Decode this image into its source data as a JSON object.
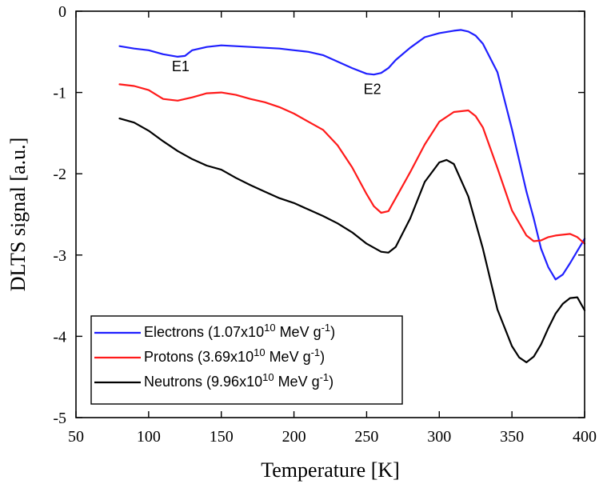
{
  "chart_data": {
    "type": "line",
    "xlabel": "Temperature [K]",
    "ylabel": "DLTS signal [a.u.]",
    "xlim": [
      50,
      400
    ],
    "ylim": [
      -5,
      0
    ],
    "x_ticks": [
      50,
      100,
      150,
      200,
      250,
      300,
      350,
      400
    ],
    "y_ticks": [
      0,
      -1,
      -2,
      -3,
      -4,
      -5
    ],
    "x_tick_labels": [
      "50",
      "100",
      "150",
      "200",
      "250",
      "300",
      "350",
      "400"
    ],
    "y_tick_labels": [
      "0",
      "-1",
      "-2",
      "-3",
      "-4",
      "-5"
    ],
    "grid": false,
    "legend_position": "bottom-left",
    "annotations": [
      {
        "text": "E1",
        "x": 122,
        "y": -0.74
      },
      {
        "text": "E2",
        "x": 254,
        "y": -1.02
      }
    ],
    "series": [
      {
        "legend": {
          "prefix": "Electrons (1.07x10",
          "exponent": "10",
          "middle": " MeV g",
          "unit_exponent": "-1",
          "suffix": ")"
        },
        "color": "#1f1fff",
        "x": [
          80,
          90,
          100,
          110,
          120,
          125,
          130,
          140,
          150,
          160,
          170,
          180,
          190,
          200,
          210,
          220,
          230,
          240,
          250,
          255,
          260,
          265,
          270,
          280,
          290,
          300,
          310,
          315,
          320,
          325,
          330,
          340,
          350,
          360,
          365,
          370,
          375,
          380,
          385,
          390,
          395,
          400
        ],
        "y": [
          -0.43,
          -0.46,
          -0.48,
          -0.53,
          -0.56,
          -0.55,
          -0.48,
          -0.44,
          -0.42,
          -0.43,
          -0.44,
          -0.45,
          -0.46,
          -0.48,
          -0.5,
          -0.54,
          -0.62,
          -0.7,
          -0.77,
          -0.78,
          -0.76,
          -0.7,
          -0.6,
          -0.45,
          -0.32,
          -0.27,
          -0.24,
          -0.23,
          -0.25,
          -0.3,
          -0.4,
          -0.75,
          -1.45,
          -2.22,
          -2.55,
          -2.92,
          -3.15,
          -3.3,
          -3.24,
          -3.1,
          -2.95,
          -2.8
        ]
      },
      {
        "legend": {
          "prefix": "Protons (3.69x10",
          "exponent": "10",
          "middle": " MeV g",
          "unit_exponent": "-1",
          "suffix": ")"
        },
        "color": "#ff1a1a",
        "x": [
          80,
          90,
          100,
          110,
          120,
          130,
          140,
          150,
          160,
          170,
          180,
          190,
          200,
          210,
          220,
          230,
          240,
          250,
          255,
          260,
          265,
          270,
          280,
          290,
          300,
          310,
          315,
          320,
          325,
          330,
          340,
          350,
          360,
          365,
          370,
          375,
          380,
          385,
          390,
          395,
          400
        ],
        "y": [
          -0.9,
          -0.92,
          -0.97,
          -1.08,
          -1.1,
          -1.06,
          -1.01,
          -1.0,
          -1.03,
          -1.08,
          -1.12,
          -1.18,
          -1.26,
          -1.36,
          -1.46,
          -1.65,
          -1.92,
          -2.25,
          -2.4,
          -2.48,
          -2.46,
          -2.3,
          -1.98,
          -1.64,
          -1.36,
          -1.24,
          -1.23,
          -1.22,
          -1.29,
          -1.43,
          -1.93,
          -2.45,
          -2.76,
          -2.83,
          -2.82,
          -2.78,
          -2.76,
          -2.75,
          -2.74,
          -2.78,
          -2.86
        ]
      },
      {
        "legend": {
          "prefix": "Neutrons (9.96x10",
          "exponent": "10",
          "middle": " MeV g",
          "unit_exponent": "-1",
          "suffix": ")"
        },
        "color": "#000000",
        "x": [
          80,
          90,
          100,
          110,
          120,
          130,
          140,
          150,
          160,
          170,
          180,
          190,
          200,
          210,
          220,
          230,
          240,
          250,
          260,
          265,
          270,
          280,
          290,
          300,
          305,
          310,
          320,
          330,
          340,
          350,
          355,
          360,
          365,
          370,
          375,
          380,
          385,
          390,
          395,
          400
        ],
        "y": [
          -1.32,
          -1.37,
          -1.47,
          -1.6,
          -1.72,
          -1.82,
          -1.9,
          -1.95,
          -2.05,
          -2.14,
          -2.22,
          -2.3,
          -2.36,
          -2.44,
          -2.52,
          -2.61,
          -2.72,
          -2.86,
          -2.96,
          -2.97,
          -2.9,
          -2.55,
          -2.1,
          -1.86,
          -1.83,
          -1.88,
          -2.28,
          -2.92,
          -3.67,
          -4.12,
          -4.26,
          -4.32,
          -4.25,
          -4.1,
          -3.9,
          -3.72,
          -3.6,
          -3.53,
          -3.52,
          -3.68
        ]
      }
    ]
  }
}
